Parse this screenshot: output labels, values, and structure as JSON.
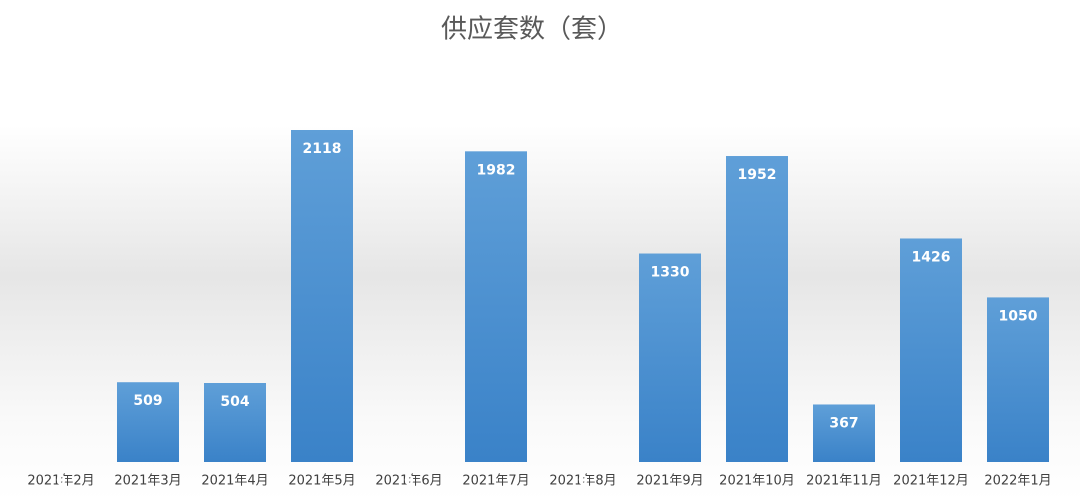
{
  "chart_data": {
    "type": "bar",
    "title": "供应套数（套）",
    "categories": [
      "2021年2月",
      "2021年3月",
      "2021年4月",
      "2021年5月",
      "2021年6月",
      "2021年7月",
      "2021年8月",
      "2021年9月",
      "2021年10月",
      "2021年11月",
      "2021年12月",
      "2022年1月"
    ],
    "values": [
      0,
      509,
      504,
      2118,
      0,
      1982,
      0,
      1330,
      1952,
      367,
      1426,
      1050
    ],
    "color": "#5b9bd5"
  }
}
